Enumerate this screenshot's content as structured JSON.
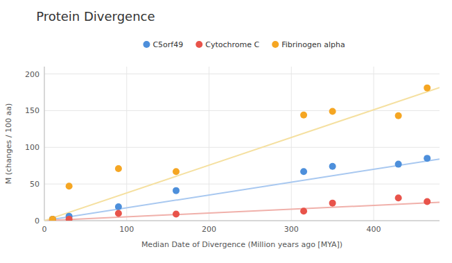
{
  "chart_data": {
    "type": "scatter",
    "title": "Protein Divergence",
    "x_label": "Median Date of Divergence (Million years ago [MYA])",
    "y_label": "M (changes / 100 aa)",
    "xlim": [
      0,
      480
    ],
    "ylim": [
      0,
      210
    ],
    "xticks": [
      0,
      100,
      200,
      300,
      400
    ],
    "yticks": [
      0,
      50,
      100,
      150,
      200
    ],
    "grid": true,
    "legend": "top",
    "series": [
      {
        "name": "C5orf49",
        "color": "#4d8fdb",
        "x": [
          10,
          30,
          90,
          160,
          315,
          350,
          430,
          465
        ],
        "values": [
          2,
          6,
          19,
          41,
          67,
          74,
          77,
          85
        ],
        "trend_slope": 0.175,
        "trend_intercept": 0,
        "trend_color": "#a8c8f0"
      },
      {
        "name": "Cytochrome C",
        "color": "#e8534a",
        "x": [
          10,
          30,
          90,
          160,
          315,
          350,
          430,
          465
        ],
        "values": [
          1,
          2,
          10,
          9,
          13,
          24,
          31,
          26
        ],
        "trend_slope": 0.052,
        "trend_intercept": 0,
        "trend_color": "#f0b0aa"
      },
      {
        "name": "Fibrinogen alpha",
        "color": "#f5a623",
        "x": [
          10,
          30,
          90,
          160,
          315,
          350,
          430,
          465
        ],
        "values": [
          2,
          47,
          71,
          67,
          144,
          149,
          143,
          181
        ],
        "trend_slope": 0.378,
        "trend_intercept": 0,
        "trend_color": "#f5e0a0"
      }
    ]
  }
}
